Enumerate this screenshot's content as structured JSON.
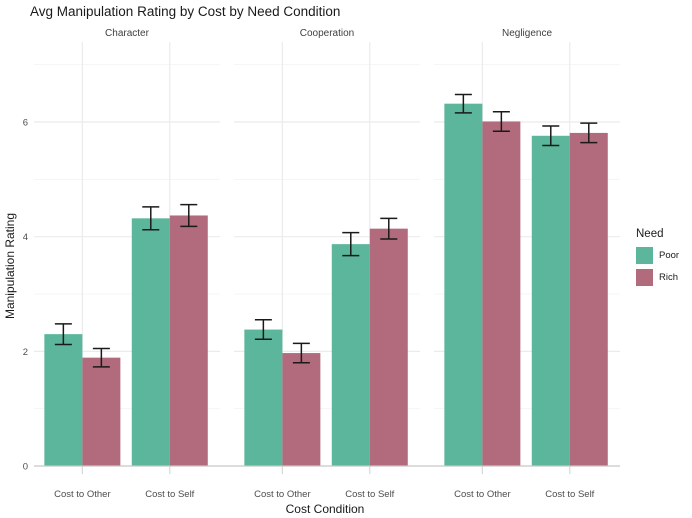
{
  "chart_data": {
    "type": "bar",
    "title": "Avg Manipulation Rating by Cost by Need Condition",
    "xlabel": "Cost Condition",
    "ylabel": "Manipulation Rating",
    "categories": [
      "Cost to Other",
      "Cost to Self"
    ],
    "yticks": [
      0,
      2,
      4,
      6
    ],
    "ylim": [
      0,
      7.4
    ],
    "grid": true,
    "legend_position": "right",
    "legend": {
      "title": "Need",
      "items": [
        {
          "label": "Poor",
          "color": "#5bb69b"
        },
        {
          "label": "Rich",
          "color": "#b26b7c"
        }
      ]
    },
    "facets": [
      {
        "label": "Character",
        "series": [
          {
            "name": "Poor",
            "values": [
              2.3,
              4.32
            ],
            "errors": [
              0.18,
              0.2
            ]
          },
          {
            "name": "Rich",
            "values": [
              1.89,
              4.37
            ],
            "errors": [
              0.16,
              0.19
            ]
          }
        ]
      },
      {
        "label": "Cooperation",
        "series": [
          {
            "name": "Poor",
            "values": [
              2.38,
              3.87
            ],
            "errors": [
              0.17,
              0.2
            ]
          },
          {
            "name": "Rich",
            "values": [
              1.97,
              4.14
            ],
            "errors": [
              0.17,
              0.18
            ]
          }
        ]
      },
      {
        "label": "Negligence",
        "series": [
          {
            "name": "Poor",
            "values": [
              6.32,
              5.76
            ],
            "errors": [
              0.16,
              0.17
            ]
          },
          {
            "name": "Rich",
            "values": [
              6.01,
              5.81
            ],
            "errors": [
              0.17,
              0.17
            ]
          }
        ]
      }
    ],
    "colors": {
      "grid_major": "#ebebeb",
      "grid_minor": "#f4f4f4",
      "axis_line": "#c6c6c6",
      "tick_mark": "#d6d6d6",
      "tick_text": "#4d4d4d",
      "strip_text": "#404040",
      "error_bar": "#1a1a1a"
    }
  }
}
